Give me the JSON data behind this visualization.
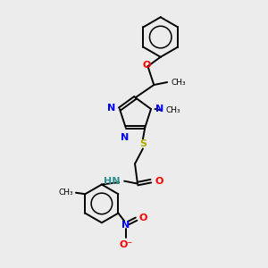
{
  "bg_color": "#ececec",
  "bond_color": "#000000",
  "N_color": "#0000ff",
  "O_color": "#ff0000",
  "S_color": "#aaaa00",
  "NH_color": "#2f8f8f",
  "figsize": [
    3.0,
    3.0
  ],
  "dpi": 100,
  "xlim": [
    0,
    10
  ],
  "ylim": [
    0,
    10
  ]
}
